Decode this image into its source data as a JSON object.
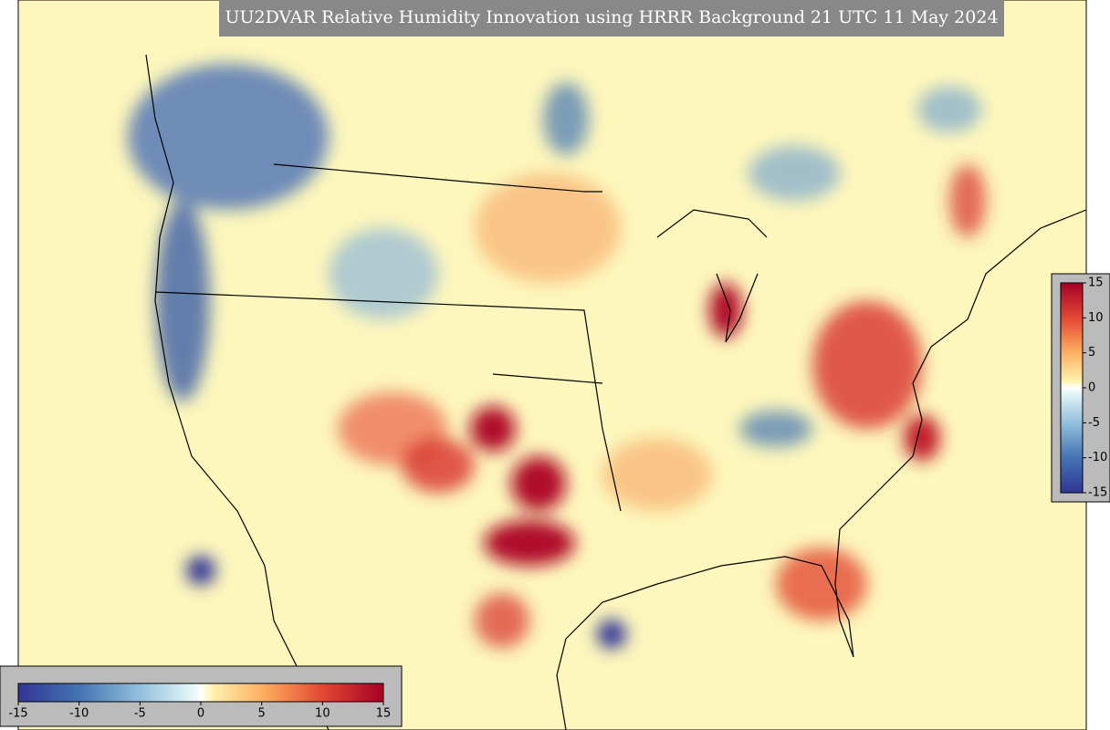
{
  "title": "UU2DVAR Relative Humidity Innovation using HRRR Background 21 UTC 11 May 2024",
  "colorbar": {
    "range": [
      -15,
      15
    ],
    "ticks": [
      -15,
      -10,
      -5,
      0,
      5,
      10,
      15
    ]
  }
}
